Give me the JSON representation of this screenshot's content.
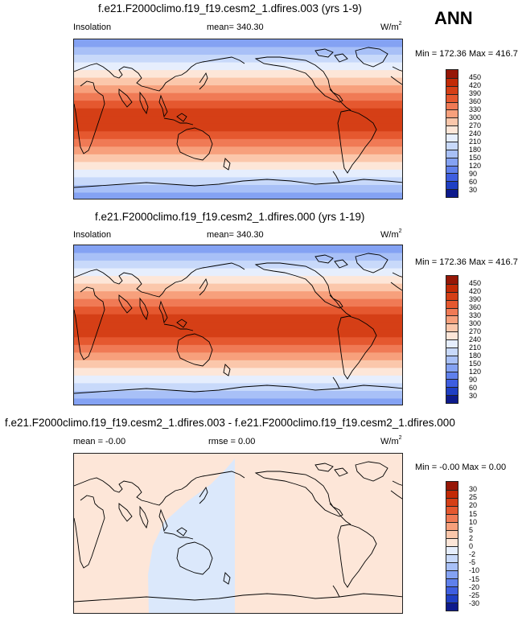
{
  "season": "ANN",
  "panels": [
    {
      "title": "f.e21.F2000climo.f19_f19.cesm2_1.dfires.003 (yrs 1-9)",
      "left_label": "Insolation",
      "center_label": "mean= 340.30",
      "unit_base": "W/m",
      "unit_exp": "2",
      "range_text": "Min = 172.36 Max = 416.74",
      "colorbar_colors": [
        "#0d1a8c",
        "#1f3fc4",
        "#3e5ee0",
        "#5f80ec",
        "#84a2f3",
        "#a8c0f7",
        "#c8d9fa",
        "#e6eefd",
        "#fde6d8",
        "#fbc7ab",
        "#f7a07c",
        "#f07a55",
        "#e5582f",
        "#d53f16",
        "#c22a06",
        "#961707"
      ],
      "colorbar_labels": [
        "450",
        "420",
        "390",
        "360",
        "330",
        "300",
        "270",
        "240",
        "210",
        "180",
        "150",
        "120",
        "90",
        "60",
        "30"
      ]
    },
    {
      "title": "f.e21.F2000climo.f19_f19.cesm2_1.dfires.000 (yrs 1-19)",
      "left_label": "Insolation",
      "center_label": "mean= 340.30",
      "unit_base": "W/m",
      "unit_exp": "2",
      "range_text": "Min = 172.36 Max = 416.74",
      "colorbar_colors": [
        "#0d1a8c",
        "#1f3fc4",
        "#3e5ee0",
        "#5f80ec",
        "#84a2f3",
        "#a8c0f7",
        "#c8d9fa",
        "#e6eefd",
        "#fde6d8",
        "#fbc7ab",
        "#f7a07c",
        "#f07a55",
        "#e5582f",
        "#d53f16",
        "#c22a06",
        "#961707"
      ],
      "colorbar_labels": [
        "450",
        "420",
        "390",
        "360",
        "330",
        "300",
        "270",
        "240",
        "210",
        "180",
        "150",
        "120",
        "90",
        "60",
        "30"
      ]
    },
    {
      "title": "f.e21.F2000climo.f19_f19.cesm2_1.dfires.003 - f.e21.F2000climo.f19_f19.cesm2_1.dfires.000",
      "left_label": "mean =  -0.00",
      "center_label": "rmse =   0.00",
      "unit_base": "W/m",
      "unit_exp": "2",
      "range_text": "Min =  -0.00 Max =   0.00",
      "colorbar_colors": [
        "#0d1a8c",
        "#1f3fc4",
        "#3e5ee0",
        "#5f80ec",
        "#84a2f3",
        "#a8c0f7",
        "#c8d9fa",
        "#e6eefd",
        "#fde6d8",
        "#fbc7ab",
        "#f7a07c",
        "#f07a55",
        "#e5582f",
        "#d53f16",
        "#c22a06",
        "#961707"
      ],
      "colorbar_labels": [
        "30",
        "25",
        "20",
        "15",
        "10",
        "5",
        "2",
        "0",
        "-2",
        "-5",
        "-10",
        "-15",
        "-20",
        "-25",
        "-30"
      ]
    }
  ],
  "map_fill": {
    "insolation_bands_north_to_south": [
      "#84a2f3",
      "#a8c0f7",
      "#c8d9fa",
      "#e6eefd",
      "#fde6d8",
      "#fbc7ab",
      "#f7a07c",
      "#f07a55",
      "#e5582f",
      "#d53f16",
      "#d53f16",
      "#d53f16",
      "#e5582f",
      "#f07a55",
      "#f7a07c",
      "#fbc7ab",
      "#fde6d8",
      "#e6eefd",
      "#c8d9fa",
      "#a8c0f7",
      "#84a2f3"
    ],
    "diff_main": "#fde6d8",
    "diff_negative": "#dbe8fb"
  }
}
